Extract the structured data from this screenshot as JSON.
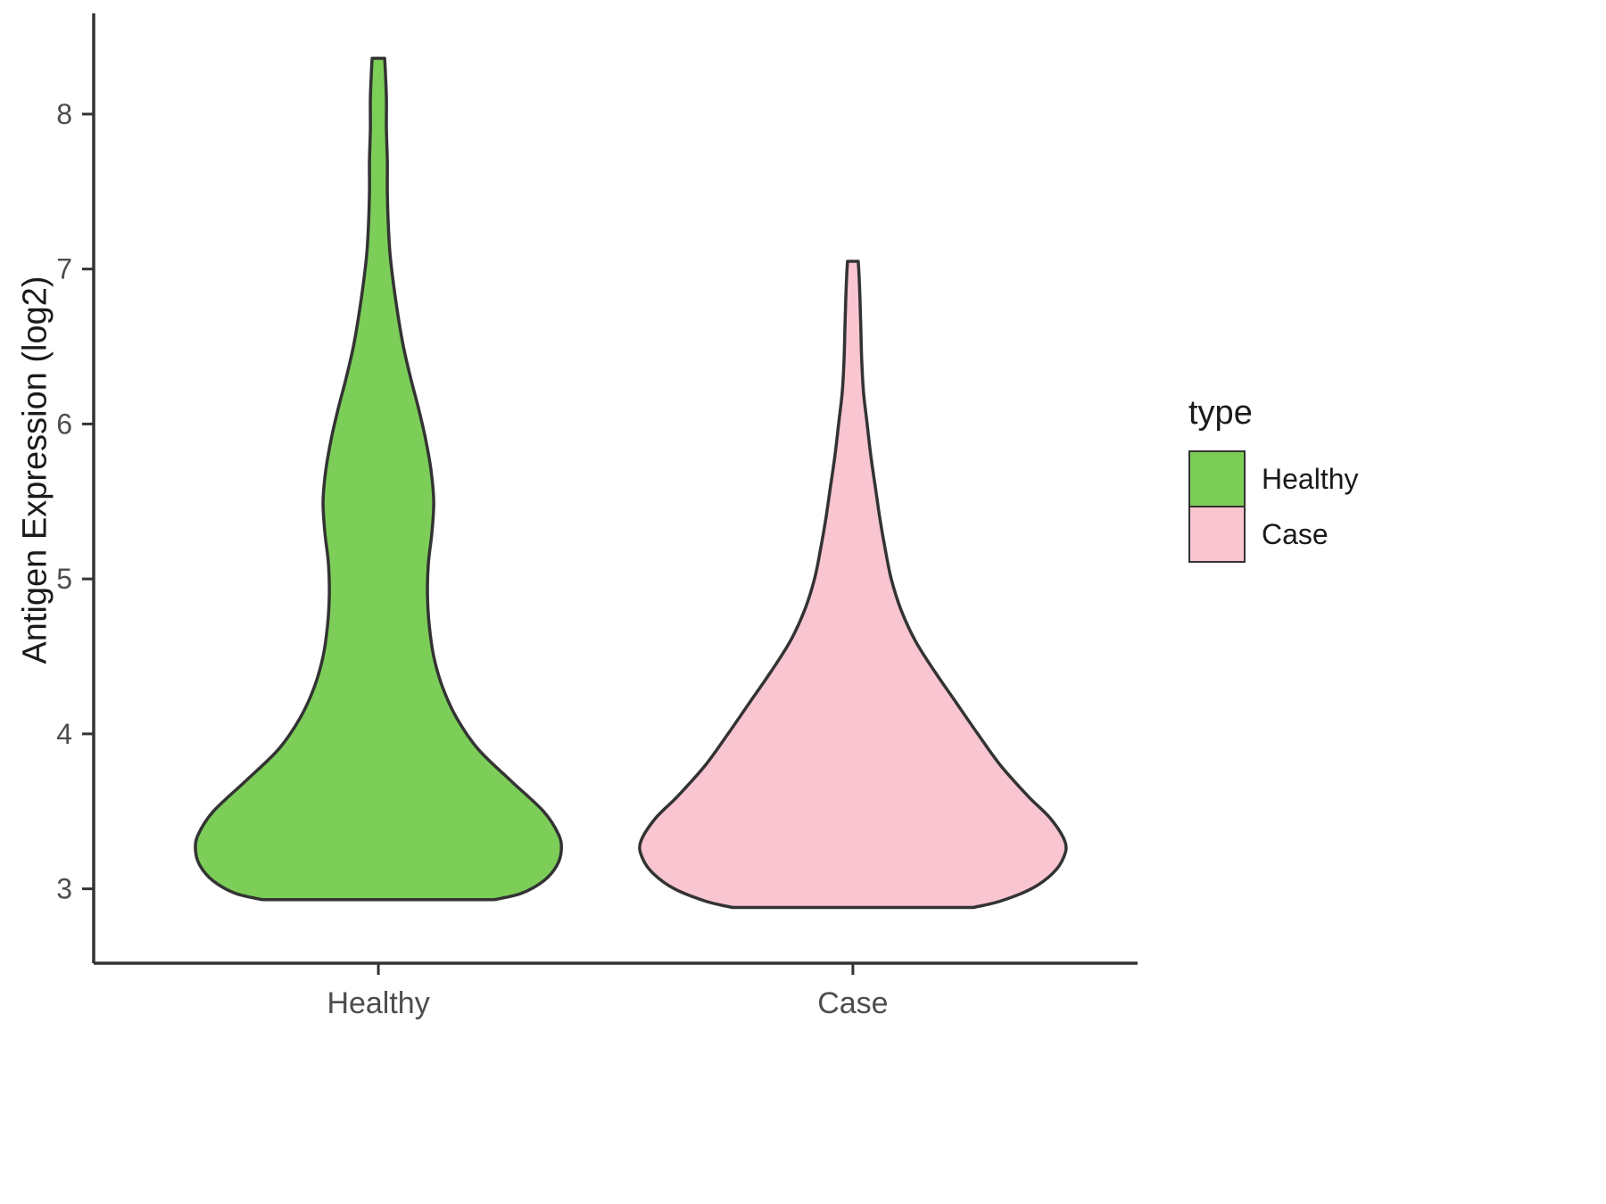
{
  "chart_data": {
    "type": "violin",
    "title": "",
    "xlabel": "",
    "ylabel": "Antigen Expression (log2)",
    "categories": [
      "Healthy",
      "Case"
    ],
    "y_ticks": [
      3,
      4,
      5,
      6,
      7,
      8
    ],
    "ylim": [
      2.52,
      8.65
    ],
    "grid": false,
    "legend": {
      "title": "type",
      "position": "right",
      "entries": [
        {
          "label": "Healthy",
          "color": "#7CCE58"
        },
        {
          "label": "Case",
          "color": "#F8C5D1"
        }
      ]
    },
    "series": [
      {
        "name": "Healthy",
        "fill": "#7CCE58",
        "outline": "#333333",
        "range": [
          2.93,
          8.36
        ],
        "profile": [
          [
            8.36,
            7
          ],
          [
            8.25,
            8
          ],
          [
            8.1,
            9
          ],
          [
            7.9,
            9
          ],
          [
            7.7,
            10
          ],
          [
            7.5,
            10
          ],
          [
            7.3,
            11
          ],
          [
            7.1,
            13
          ],
          [
            6.9,
            17
          ],
          [
            6.7,
            22
          ],
          [
            6.5,
            28
          ],
          [
            6.3,
            36
          ],
          [
            6.1,
            45
          ],
          [
            5.9,
            53
          ],
          [
            5.7,
            59
          ],
          [
            5.5,
            62
          ],
          [
            5.3,
            60
          ],
          [
            5.1,
            56
          ],
          [
            4.9,
            55
          ],
          [
            4.7,
            57
          ],
          [
            4.5,
            62
          ],
          [
            4.3,
            72
          ],
          [
            4.1,
            88
          ],
          [
            3.9,
            112
          ],
          [
            3.7,
            148
          ],
          [
            3.5,
            185
          ],
          [
            3.35,
            202
          ],
          [
            3.25,
            205
          ],
          [
            3.15,
            200
          ],
          [
            3.05,
            185
          ],
          [
            2.97,
            160
          ],
          [
            2.93,
            130
          ]
        ]
      },
      {
        "name": "Case",
        "fill": "#F8C5D1",
        "outline": "#333333",
        "range": [
          2.88,
          7.05
        ],
        "profile": [
          [
            7.05,
            6
          ],
          [
            6.95,
            7
          ],
          [
            6.8,
            8
          ],
          [
            6.6,
            9
          ],
          [
            6.4,
            10
          ],
          [
            6.2,
            12
          ],
          [
            6.0,
            16
          ],
          [
            5.8,
            20
          ],
          [
            5.6,
            25
          ],
          [
            5.4,
            30
          ],
          [
            5.2,
            36
          ],
          [
            5.0,
            43
          ],
          [
            4.8,
            54
          ],
          [
            4.6,
            70
          ],
          [
            4.4,
            92
          ],
          [
            4.2,
            116
          ],
          [
            4.0,
            140
          ],
          [
            3.8,
            165
          ],
          [
            3.6,
            196
          ],
          [
            3.45,
            222
          ],
          [
            3.3,
            238
          ],
          [
            3.2,
            236
          ],
          [
            3.1,
            224
          ],
          [
            3.0,
            200
          ],
          [
            2.92,
            165
          ],
          [
            2.88,
            135
          ]
        ]
      }
    ]
  },
  "style": {
    "axis_color": "#333333",
    "tick_label_color": "#4d4d4d",
    "outline_width": 3.5
  }
}
